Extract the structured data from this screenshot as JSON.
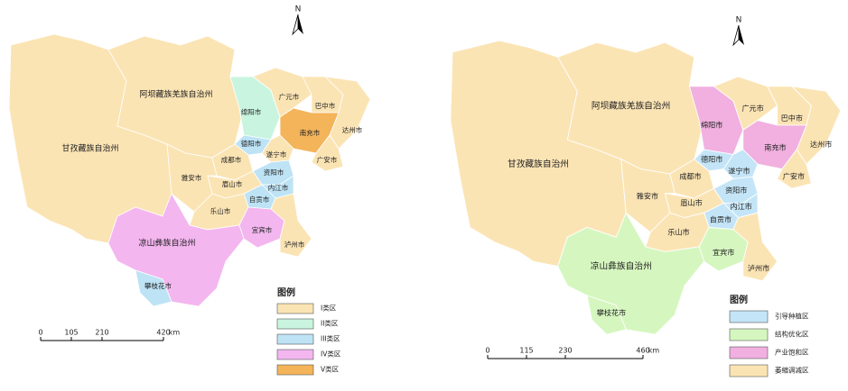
{
  "maps": [
    {
      "north": "N",
      "regions": [
        "甘孜藏族自治州",
        "阿坝藏族羌族自治州",
        "绵阳市",
        "广元市",
        "巴中市",
        "达州市",
        "南充市",
        "广安市",
        "德阳市",
        "遂宁市",
        "成都市",
        "资阳市",
        "内江市",
        "自贡市",
        "眉山市",
        "雅安市",
        "乐山市",
        "宜宾市",
        "泸州市",
        "凉山彝族自治州",
        "攀枝花市"
      ],
      "legend": {
        "title": "图例",
        "items": [
          "I类区",
          "II类区",
          "III类区",
          "IV类区",
          "V类区"
        ]
      },
      "scale": {
        "ticks": [
          "0",
          "105",
          "210",
          "420"
        ],
        "unit": "km"
      }
    },
    {
      "north": "N",
      "regions": [
        "甘孜藏族自治州",
        "阿坝藏族羌族自治州",
        "绵阳市",
        "广元市",
        "巴中市",
        "达州市",
        "南充市",
        "广安市",
        "德阳市",
        "遂宁市",
        "成都市",
        "资阳市",
        "内江市",
        "自贡市",
        "眉山市",
        "雅安市",
        "乐山市",
        "宜宾市",
        "泸州市",
        "凉山彝族自治州",
        "攀枝花市"
      ],
      "legend": {
        "title": "图例",
        "items": [
          "引导种植区",
          "结构优化区",
          "产业饱和区",
          "萎缩调减区"
        ]
      },
      "scale": {
        "ticks": [
          "0",
          "115",
          "230",
          "460"
        ],
        "unit": "km"
      }
    }
  ]
}
